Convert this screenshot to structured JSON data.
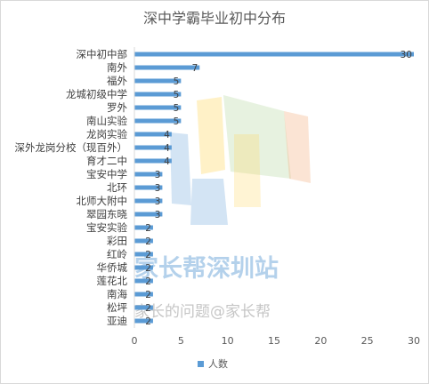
{
  "chart_data": {
    "type": "bar",
    "orientation": "horizontal",
    "title": "深中学霸毕业初中分布",
    "categories": [
      "深中初中部",
      "南外",
      "福外",
      "龙城初级中学",
      "罗外",
      "南山实验",
      "龙岗实验",
      "深外龙岗分校（现百外）",
      "育才二中",
      "宝安中学",
      "北环",
      "北师大附中",
      "翠园东晓",
      "宝安实验",
      "彩田",
      "红岭",
      "华侨城",
      "莲花北",
      "南海",
      "松坪",
      "亚迪"
    ],
    "series": [
      {
        "name": "人数",
        "values": [
          30,
          7,
          5,
          5,
          5,
          5,
          4,
          4,
          4,
          3,
          3,
          3,
          3,
          2,
          2,
          2,
          2,
          2,
          2,
          2,
          2
        ]
      }
    ],
    "xlim": [
      0,
      30
    ],
    "xticks": [
      "0",
      "5",
      "10",
      "15",
      "20",
      "25",
      "30"
    ],
    "grid": false,
    "legend_position": "bottom",
    "data_labels": true,
    "bar_color": "#5b9bd5"
  },
  "watermark": {
    "line1": "家长帮深圳站",
    "line2": "家长的问题@家长帮"
  }
}
